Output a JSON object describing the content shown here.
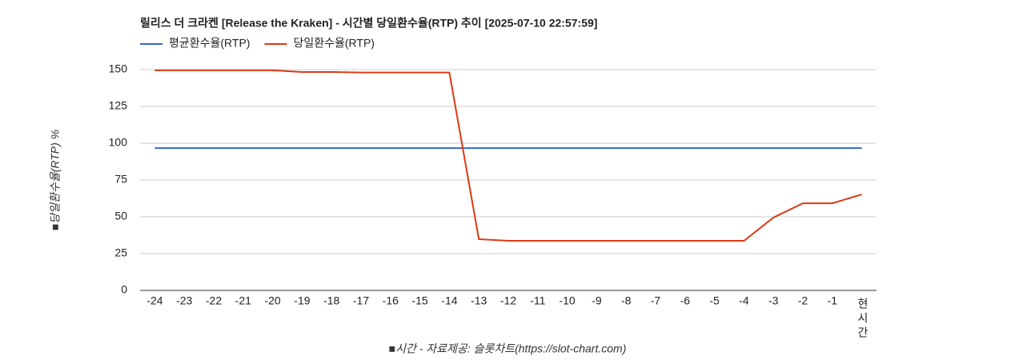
{
  "chart_data": {
    "type": "line",
    "title": "릴리스 더 크라켄 [Release the Kraken] - 시간별 당일환수율(RTP) 추이 [2025-07-10 22:57:59]",
    "y_label": "■당일환수율(RTP) %",
    "x_label": "■시간 - 자료제공: 슬롯차트(https://slot-chart.com)",
    "categories": [
      "-24",
      "-23",
      "-22",
      "-21",
      "-20",
      "-19",
      "-18",
      "-17",
      "-16",
      "-15",
      "-14",
      "-13",
      "-12",
      "-11",
      "-10",
      "-9",
      "-8",
      "-7",
      "-6",
      "-5",
      "-4",
      "-3",
      "-2",
      "-1",
      "현시간"
    ],
    "series": [
      {
        "name": "평균환수율(RTP)",
        "color": "#3366cc",
        "values": [
          96.7,
          96.7,
          96.7,
          96.7,
          96.7,
          96.7,
          96.7,
          96.7,
          96.7,
          96.7,
          96.7,
          96.7,
          96.7,
          96.7,
          96.7,
          96.7,
          96.7,
          96.7,
          96.7,
          96.7,
          96.7,
          96.7,
          96.7,
          96.7,
          96.7
        ]
      },
      {
        "name": "당일환수율(RTP)",
        "color": "#dc3912",
        "values": [
          149.5,
          149.5,
          149.5,
          149.5,
          149.5,
          148.4,
          148.4,
          148,
          148,
          148,
          148,
          34.8,
          33.7,
          33.7,
          33.7,
          33.7,
          33.7,
          33.7,
          33.7,
          33.7,
          33.7,
          49.5,
          59.2,
          59.2,
          65.2
        ]
      }
    ],
    "ylim": [
      0,
      150
    ],
    "yticks": [
      0,
      25,
      50,
      75,
      100,
      125,
      150
    ],
    "grid": true,
    "legend": "top-left"
  }
}
